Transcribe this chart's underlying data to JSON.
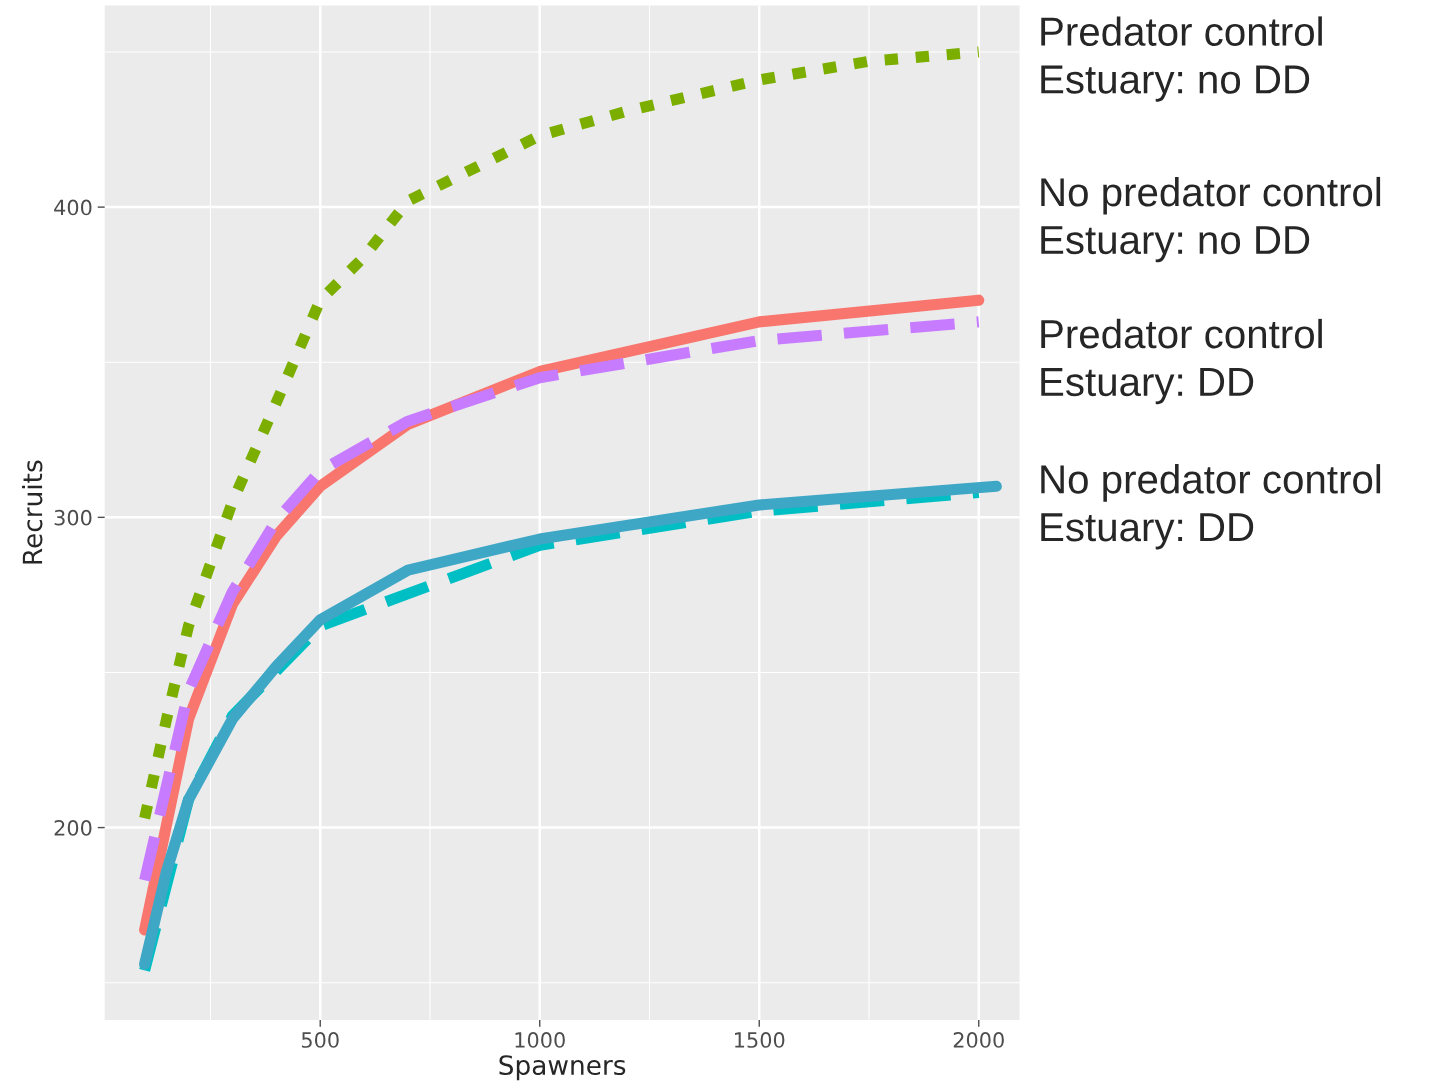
{
  "chart_data": {
    "type": "line",
    "xlabel": "Spawners",
    "ylabel": "Recruits",
    "xlim": [
      9,
      2093
    ],
    "ylim": [
      138,
      465
    ],
    "xticks": [
      500,
      1000,
      1500,
      2000
    ],
    "yticks": [
      200,
      300,
      400
    ],
    "grid": true,
    "legend": false,
    "annotations": [
      "Predator control\nEstuary: no DD",
      "No predator control\nEstuary: no DD",
      "Predator control\nEstuary: DD",
      "No predator control\nEstuary: DD"
    ],
    "series": [
      {
        "color": "#7cae00",
        "line_style": "dotted",
        "x": [
          100,
          150,
          200,
          300,
          400,
          500,
          600,
          700,
          800,
          1000,
          1200,
          1500,
          1750,
          2000
        ],
        "values": [
          203,
          235,
          265,
          305,
          337,
          370,
          384,
          402,
          409,
          423,
          431,
          441,
          447,
          450
        ]
      },
      {
        "color": "#f8766d",
        "line_style": "solid",
        "x": [
          100,
          200,
          300,
          400,
          500,
          700,
          1000,
          1500,
          2000
        ],
        "values": [
          167,
          235,
          272,
          294,
          310,
          330,
          347,
          363,
          370
        ]
      },
      {
        "color": "#c77cff",
        "line_style": "dashed",
        "x": [
          100,
          200,
          300,
          400,
          500,
          700,
          1000,
          1500,
          2000
        ],
        "values": [
          183,
          244,
          276,
          299,
          315,
          331,
          345,
          357,
          363
        ]
      },
      {
        "color": "#00bfc4",
        "line_style": "dashed",
        "x": [
          100,
          200,
          300,
          500,
          1000,
          1500,
          2000
        ],
        "values": [
          154,
          209,
          236,
          265,
          291,
          302,
          308
        ]
      },
      {
        "color": "#3fa7c6",
        "line_style": "solid",
        "x": [
          100,
          150,
          200,
          300,
          400,
          500,
          700,
          1000,
          1500,
          2040
        ],
        "values": [
          156,
          186,
          209,
          235,
          252,
          267,
          283,
          293,
          304,
          310
        ]
      }
    ]
  }
}
